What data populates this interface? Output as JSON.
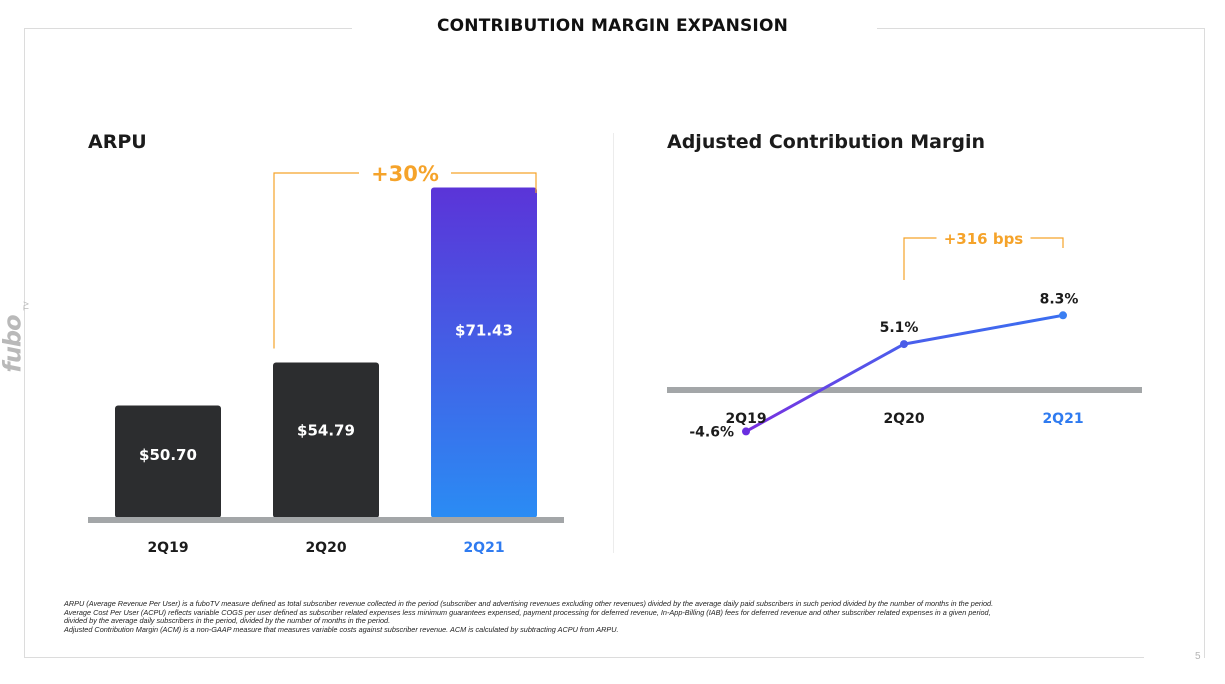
{
  "page": {
    "title": "CONTRIBUTION MARGIN EXPANSION",
    "page_number": "5",
    "brand_text": "fubo",
    "brand_superscript": "TV",
    "colors": {
      "dark_bar": "#2c2d2f",
      "accent_orange": "#f5a32a",
      "accent_blue": "#2f7bf0",
      "accent_purple": "#6a2ee0",
      "baseline_gray": "#a3a6a8"
    },
    "footnotes": [
      "ARPU (Average Revenue Per User) is a fuboTV measure defined as total subscriber revenue collected in the period (subscriber and advertising revenues excluding other revenues) divided by the average daily paid subscribers in such period divided by the number of months in the period.",
      "Average Cost Per User (ACPU) reflects variable COGS per user defined as subscriber related expenses less minimum guarantees expensed, payment processing for deferred revenue, In-App-Billing (IAB) fees for deferred revenue and other subscriber related expenses in a given period,",
      "divided by the average daily subscribers in the period, divided by the number of months in the period.",
      "Adjusted Contribution Margin (ACM) is a non-GAAP measure that measures variable costs against subscriber revenue. ACM is calculated by subtracting ACPU from ARPU."
    ]
  },
  "chart_data": [
    {
      "type": "bar",
      "title": "ARPU",
      "categories": [
        "2Q19",
        "2Q20",
        "2Q21"
      ],
      "values": [
        50.7,
        54.79,
        71.43
      ],
      "value_labels": [
        "$50.70",
        "$54.79",
        "$71.43"
      ],
      "highlight_index": 2,
      "annotation": {
        "text": "+30%",
        "from": "2Q20",
        "to": "2Q21"
      },
      "ylim": [
        40,
        75
      ]
    },
    {
      "type": "line",
      "title": "Adjusted Contribution Margin",
      "categories": [
        "2Q19",
        "2Q20",
        "2Q21"
      ],
      "values": [
        -4.6,
        5.1,
        8.3
      ],
      "value_labels": [
        "-4.6%",
        "5.1%",
        "8.3%"
      ],
      "highlight_index": 2,
      "annotation": {
        "text": "+316 bps",
        "from": "2Q20",
        "to": "2Q21"
      },
      "ylim": [
        -6,
        10
      ]
    }
  ]
}
